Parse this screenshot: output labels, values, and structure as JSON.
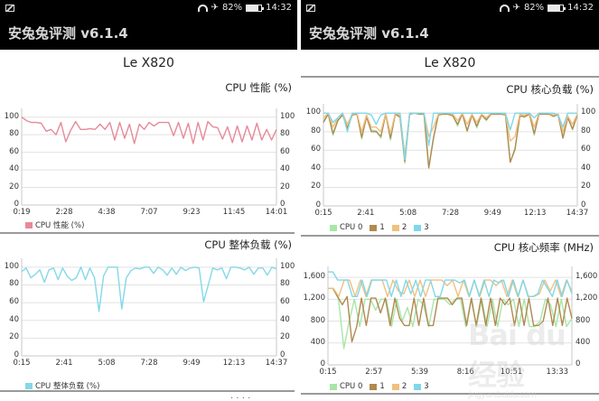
{
  "status_bar": {
    "battery": "82%",
    "time_left": "14:32",
    "time_right": "14:32"
  },
  "app": {
    "title": "安兔兔评测 v6.1.4"
  },
  "device": {
    "name": "Le X820"
  },
  "colors": {
    "perf": "#e68a9a",
    "load": "#84d8e8",
    "cpu0": "#a8e6a8",
    "cpu1": "#b08a50",
    "cpu2": "#f0c080",
    "cpu3": "#7fd8ea",
    "grid": "#e2e2e2",
    "axis": "#c8c8c8"
  },
  "chart_data": [
    {
      "id": "cpu_perf",
      "type": "line",
      "title": "CPU 性能 (%)",
      "xlabel": "",
      "ylabel": "",
      "ylim": [
        0,
        100
      ],
      "yticks": [
        "0",
        "20",
        "40",
        "60",
        "80",
        "100"
      ],
      "xticks": [
        "0:19",
        "2:28",
        "4:38",
        "7:07",
        "9:23",
        "11:45",
        "14:01"
      ],
      "legend": [
        {
          "label": "CPU 性能 (%)",
          "color": "#e68a9a"
        }
      ],
      "series": [
        {
          "name": "CPU 性能 (%)",
          "color": "#e68a9a",
          "values": [
            100,
            96,
            94,
            94,
            93,
            84,
            86,
            80,
            94,
            72,
            85,
            95,
            86,
            86,
            87,
            86,
            92,
            86,
            94,
            74,
            94,
            76,
            92,
            70,
            92,
            86,
            94,
            90,
            94,
            94,
            94,
            79,
            94,
            76,
            93,
            70,
            94,
            74,
            95,
            89,
            88,
            75,
            89,
            71,
            90,
            72,
            90,
            74,
            93,
            74,
            86,
            74,
            86
          ]
        }
      ]
    },
    {
      "id": "cpu_total_load",
      "type": "line",
      "title": "CPU 整体负载 (%)",
      "ylim": [
        0,
        100
      ],
      "yticks": [
        "0",
        "20",
        "40",
        "60",
        "80",
        "100"
      ],
      "xticks": [
        "0:15",
        "2:41",
        "5:08",
        "7:28",
        "9:49",
        "12:13",
        "14:37"
      ],
      "legend": [
        {
          "label": "CPU 整体负载 (%)",
          "color": "#84d8e8"
        }
      ],
      "series": [
        {
          "name": "CPU 整体负载 (%)",
          "color": "#84d8e8",
          "values": [
            95,
            99,
            88,
            92,
            97,
            83,
            97,
            99,
            86,
            99,
            90,
            85,
            88,
            100,
            86,
            99,
            88,
            50,
            90,
            100,
            100,
            100,
            53,
            88,
            96,
            99,
            98,
            100,
            100,
            93,
            100,
            97,
            91,
            99,
            92,
            100,
            96,
            99,
            100,
            99,
            61,
            80,
            99,
            97,
            99,
            87,
            100,
            100,
            99,
            97,
            100,
            92,
            99,
            99,
            91,
            100,
            98
          ]
        }
      ]
    },
    {
      "id": "cpu_core_load",
      "type": "line",
      "title": "CPU 核心负载 (%)",
      "ylim": [
        0,
        100
      ],
      "yticks": [
        "0",
        "20",
        "40",
        "60",
        "80",
        "100"
      ],
      "xticks": [
        "0:15",
        "2:41",
        "5:08",
        "7:28",
        "9:49",
        "12:13",
        "14:37"
      ],
      "legend": [
        {
          "label": "CPU 0",
          "color": "#a8e6a8"
        },
        {
          "label": "1",
          "color": "#b08a50"
        },
        {
          "label": "2",
          "color": "#f0c080"
        },
        {
          "label": "3",
          "color": "#7fd8ea"
        }
      ],
      "series": [
        {
          "name": "CPU 0",
          "color": "#a8e6a8",
          "values": [
            92,
            99,
            76,
            92,
            99,
            82,
            98,
            100,
            72,
            97,
            82,
            81,
            73,
            100,
            71,
            99,
            95,
            46,
            100,
            100,
            100,
            99,
            42,
            73,
            98,
            100,
            99,
            98,
            86,
            100,
            80,
            99,
            84,
            98,
            92,
            100,
            99,
            100,
            99,
            48,
            60,
            98,
            97,
            100,
            76,
            100,
            100,
            100,
            96,
            99,
            74,
            96,
            82,
            99
          ]
        },
        {
          "name": "1",
          "color": "#b08a50",
          "values": [
            90,
            99,
            78,
            92,
            98,
            84,
            98,
            99,
            74,
            96,
            80,
            80,
            75,
            99,
            73,
            99,
            96,
            48,
            99,
            100,
            99,
            99,
            41,
            74,
            98,
            99,
            99,
            97,
            88,
            99,
            81,
            98,
            86,
            98,
            93,
            99,
            99,
            99,
            98,
            47,
            62,
            97,
            96,
            99,
            78,
            99,
            99,
            99,
            97,
            98,
            73,
            95,
            83,
            98
          ]
        },
        {
          "name": "2",
          "color": "#f0c080",
          "values": [
            95,
            100,
            85,
            95,
            100,
            88,
            99,
            100,
            80,
            98,
            85,
            85,
            80,
            100,
            78,
            100,
            98,
            55,
            100,
            100,
            100,
            100,
            75,
            85,
            99,
            100,
            100,
            99,
            92,
            100,
            88,
            99,
            90,
            99,
            95,
            100,
            100,
            100,
            99,
            70,
            75,
            99,
            98,
            100,
            85,
            100,
            100,
            100,
            98,
            99,
            80,
            97,
            88,
            99
          ]
        },
        {
          "name": "3",
          "color": "#7fd8ea",
          "values": [
            100,
            100,
            90,
            95,
            100,
            80,
            100,
            100,
            100,
            100,
            98,
            88,
            98,
            100,
            100,
            100,
            100,
            50,
            100,
            100,
            100,
            100,
            65,
            100,
            100,
            100,
            100,
            100,
            100,
            100,
            100,
            100,
            100,
            100,
            100,
            100,
            100,
            100,
            100,
            82,
            100,
            100,
            100,
            100,
            95,
            100,
            100,
            100,
            100,
            98,
            85,
            100,
            100,
            100
          ]
        }
      ]
    },
    {
      "id": "cpu_core_freq",
      "type": "line",
      "title": "CPU 核心频率 (MHz)",
      "ylim": [
        0,
        1800
      ],
      "yticks": [
        "0",
        "400",
        "800",
        "1,200",
        "1,600"
      ],
      "xticks": [
        "0:15",
        "2:57",
        "5:39",
        "8:16",
        "10:51",
        "13:33"
      ],
      "legend": [
        {
          "label": "CPU 0",
          "color": "#a8e6a8"
        },
        {
          "label": "1",
          "color": "#b08a50"
        },
        {
          "label": "2",
          "color": "#f0c080"
        },
        {
          "label": "3",
          "color": "#7fd8ea"
        }
      ],
      "series": [
        {
          "name": "CPU 0",
          "color": "#a8e6a8",
          "values": [
            1400,
            1400,
            1200,
            300,
            800,
            1200,
            700,
            1200,
            1200,
            1000,
            1200,
            1200,
            700,
            1200,
            800,
            1050,
            700,
            1200,
            1100,
            700,
            1200,
            1200,
            1200,
            1100,
            1200,
            1200,
            700,
            1200,
            700,
            1200,
            700,
            1200,
            700,
            1200,
            1100,
            1200,
            700,
            1200,
            700,
            700,
            800,
            1200,
            1100,
            700,
            1200,
            700,
            850
          ]
        },
        {
          "name": "1",
          "color": "#b08a50",
          "values": [
            1400,
            1400,
            1250,
            1100,
            1250,
            420,
            700,
            1220,
            720,
            1220,
            1220,
            950,
            1220,
            720,
            1220,
            850,
            720,
            720,
            1220,
            720,
            1220,
            720,
            720,
            1220,
            1220,
            1220,
            1100,
            1220,
            1220,
            720,
            1220,
            720,
            1220,
            720,
            1220,
            720,
            1220,
            1100,
            1220,
            720,
            1220,
            720,
            1220,
            720,
            720,
            800,
            1220,
            720,
            1220,
            720,
            1220,
            850
          ]
        },
        {
          "name": "2",
          "color": "#f0c080",
          "values": [
            1400,
            1400,
            1250,
            1550,
            1550,
            1250,
            1550,
            1250,
            1550,
            1550,
            1550,
            1250,
            1550,
            1350,
            1300,
            1550,
            1250,
            1550,
            1250,
            1550,
            1550,
            1550,
            1450,
            1550,
            1250,
            1550,
            1250,
            1550,
            1250,
            1550,
            1550,
            1450,
            1550,
            1250,
            1550,
            1250,
            1550,
            1250,
            1250,
            1300,
            1550,
            1350,
            1550,
            1250,
            1550,
            1350
          ]
        },
        {
          "name": "3",
          "color": "#7fd8ea",
          "values": [
            1700,
            1700,
            1550,
            1550,
            1550,
            1250,
            1250,
            1550,
            1250,
            1550,
            1550,
            1550,
            1550,
            1250,
            1550,
            1250,
            1550,
            1300,
            1550,
            1250,
            1550,
            1550,
            1250,
            1250,
            1550,
            1550,
            1550,
            1500,
            1550,
            1250,
            1550,
            1250,
            1550,
            1250,
            1550,
            1500,
            1550,
            1250,
            1550,
            1250,
            1550,
            1250,
            1250,
            1300,
            1550,
            1400,
            1250,
            1550,
            1250,
            1550,
            1300
          ]
        }
      ]
    }
  ],
  "watermark": {
    "main": "Bai du 经验",
    "sub": "jingyan.baidu.com"
  }
}
